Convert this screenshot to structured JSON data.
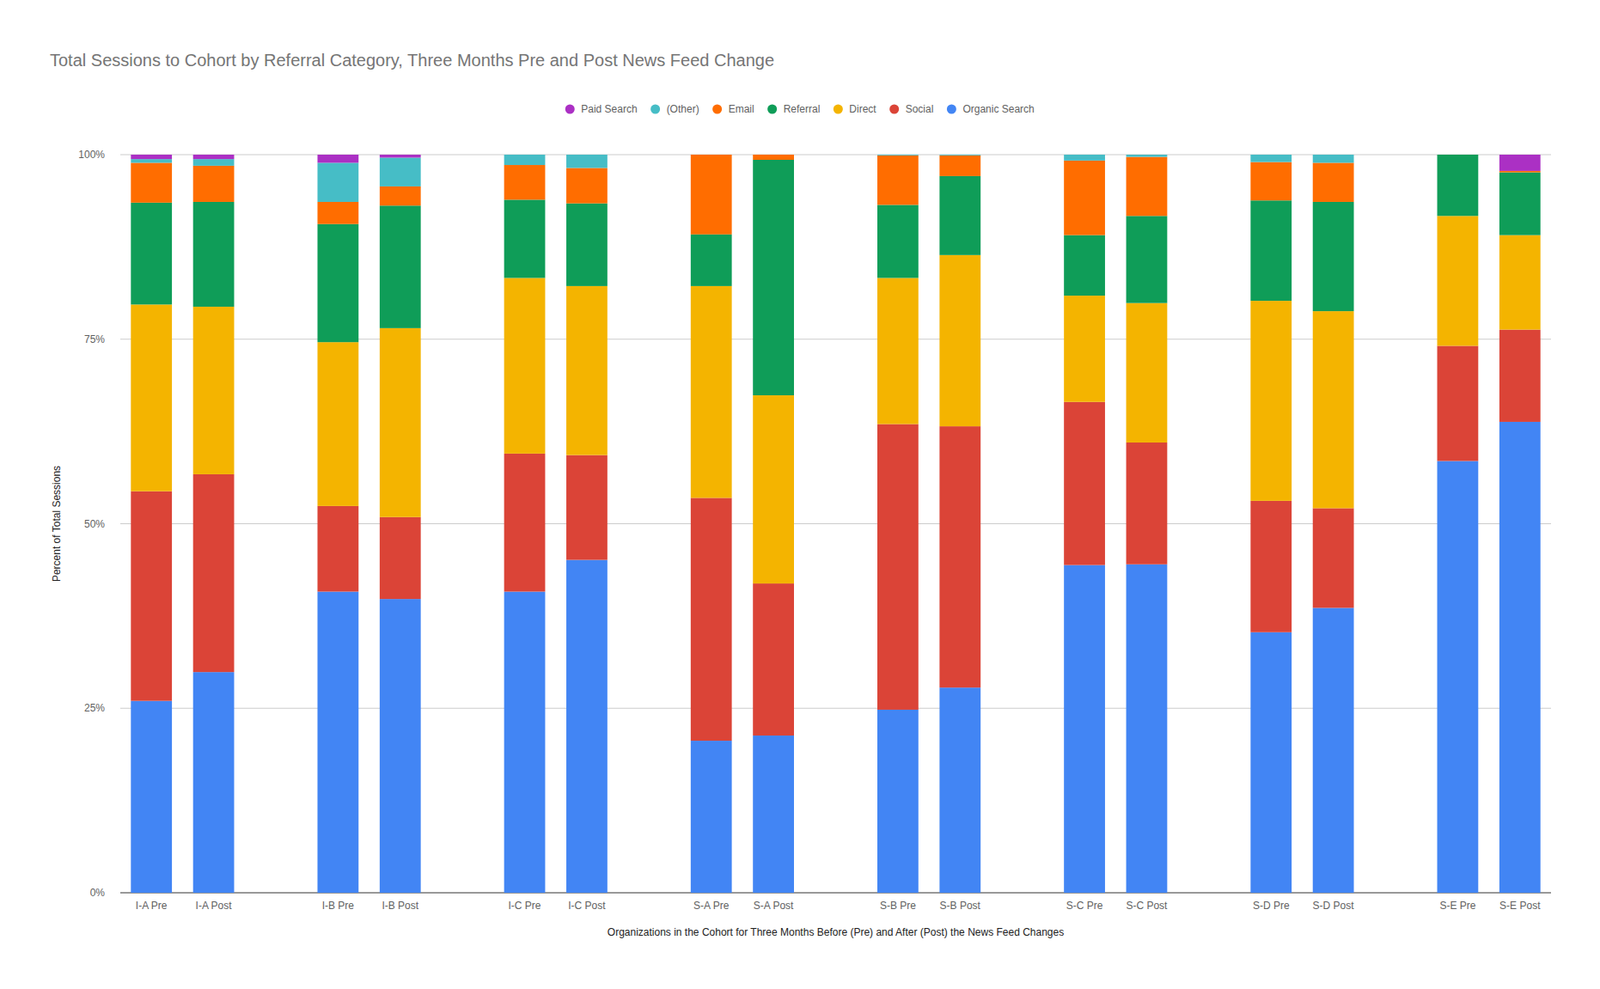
{
  "chart_data": {
    "type": "bar",
    "stacked": true,
    "grid": true,
    "legend": "top",
    "title": "Total Sessions to Cohort by Referral Category, Three Months Pre and Post News Feed Change",
    "x_label": "Organizations in the Cohort for Three Months Before (Pre) and After (Post) the News Feed Changes",
    "y_label": "Percent of Total Sessions",
    "categories": [
      "I-A Pre",
      "I-A Post",
      "I-B Pre",
      "I-B Post",
      "I-C Pre",
      "I-C Post",
      "S-A Pre",
      "S-A Post",
      "S-B Pre",
      "S-B Post",
      "S-C Pre",
      "S-C Post",
      "S-D Pre",
      "S-D Post",
      "S-E Pre",
      "S-E Post"
    ],
    "ylim": [
      0,
      100
    ],
    "yticks": [
      {
        "value": 0,
        "label": "0%"
      },
      {
        "value": 25,
        "label": "25%"
      },
      {
        "value": 50,
        "label": "50%"
      },
      {
        "value": 75,
        "label": "75%"
      },
      {
        "value": 100,
        "label": "100%"
      }
    ],
    "series": [
      {
        "name": "Organic Search",
        "color": "#4285f4",
        "values": [
          26.0,
          29.9,
          40.8,
          39.8,
          40.8,
          45.1,
          20.6,
          21.3,
          24.8,
          27.8,
          44.4,
          44.5,
          35.3,
          38.6,
          58.5,
          63.8
        ]
      },
      {
        "name": "Social",
        "color": "#db4437",
        "values": [
          28.4,
          26.8,
          11.6,
          11.1,
          18.7,
          14.2,
          32.9,
          20.6,
          38.7,
          35.4,
          22.1,
          16.5,
          17.8,
          13.5,
          15.6,
          12.5
        ]
      },
      {
        "name": "Direct",
        "color": "#f4b400",
        "values": [
          25.3,
          22.7,
          22.2,
          25.6,
          23.8,
          22.9,
          28.7,
          25.5,
          19.8,
          23.2,
          14.4,
          18.9,
          27.1,
          26.7,
          17.6,
          12.8
        ]
      },
      {
        "name": "Referral",
        "color": "#0f9d58",
        "values": [
          13.8,
          14.2,
          16.0,
          16.6,
          10.6,
          11.2,
          7.0,
          31.9,
          9.9,
          10.7,
          8.2,
          11.8,
          13.6,
          14.8,
          8.3,
          8.5
        ]
      },
      {
        "name": "Email",
        "color": "#ff6d00",
        "values": [
          5.4,
          4.9,
          3.0,
          2.6,
          4.7,
          4.8,
          10.8,
          0.7,
          6.7,
          2.8,
          10.1,
          8.0,
          5.2,
          5.3,
          0,
          0.2
        ]
      },
      {
        "name": "(Other)",
        "color": "#46bdc6",
        "values": [
          0.5,
          0.9,
          5.3,
          3.9,
          1.4,
          1.8,
          0,
          0,
          0.1,
          0.1,
          0.8,
          0.3,
          1.0,
          1.1,
          0,
          0
        ]
      },
      {
        "name": "Paid Search",
        "color": "#ab30c4",
        "values": [
          0.6,
          0.6,
          1.1,
          0.4,
          0,
          0,
          0,
          0,
          0,
          0,
          0,
          0,
          0,
          0,
          0,
          2.2
        ]
      }
    ]
  }
}
